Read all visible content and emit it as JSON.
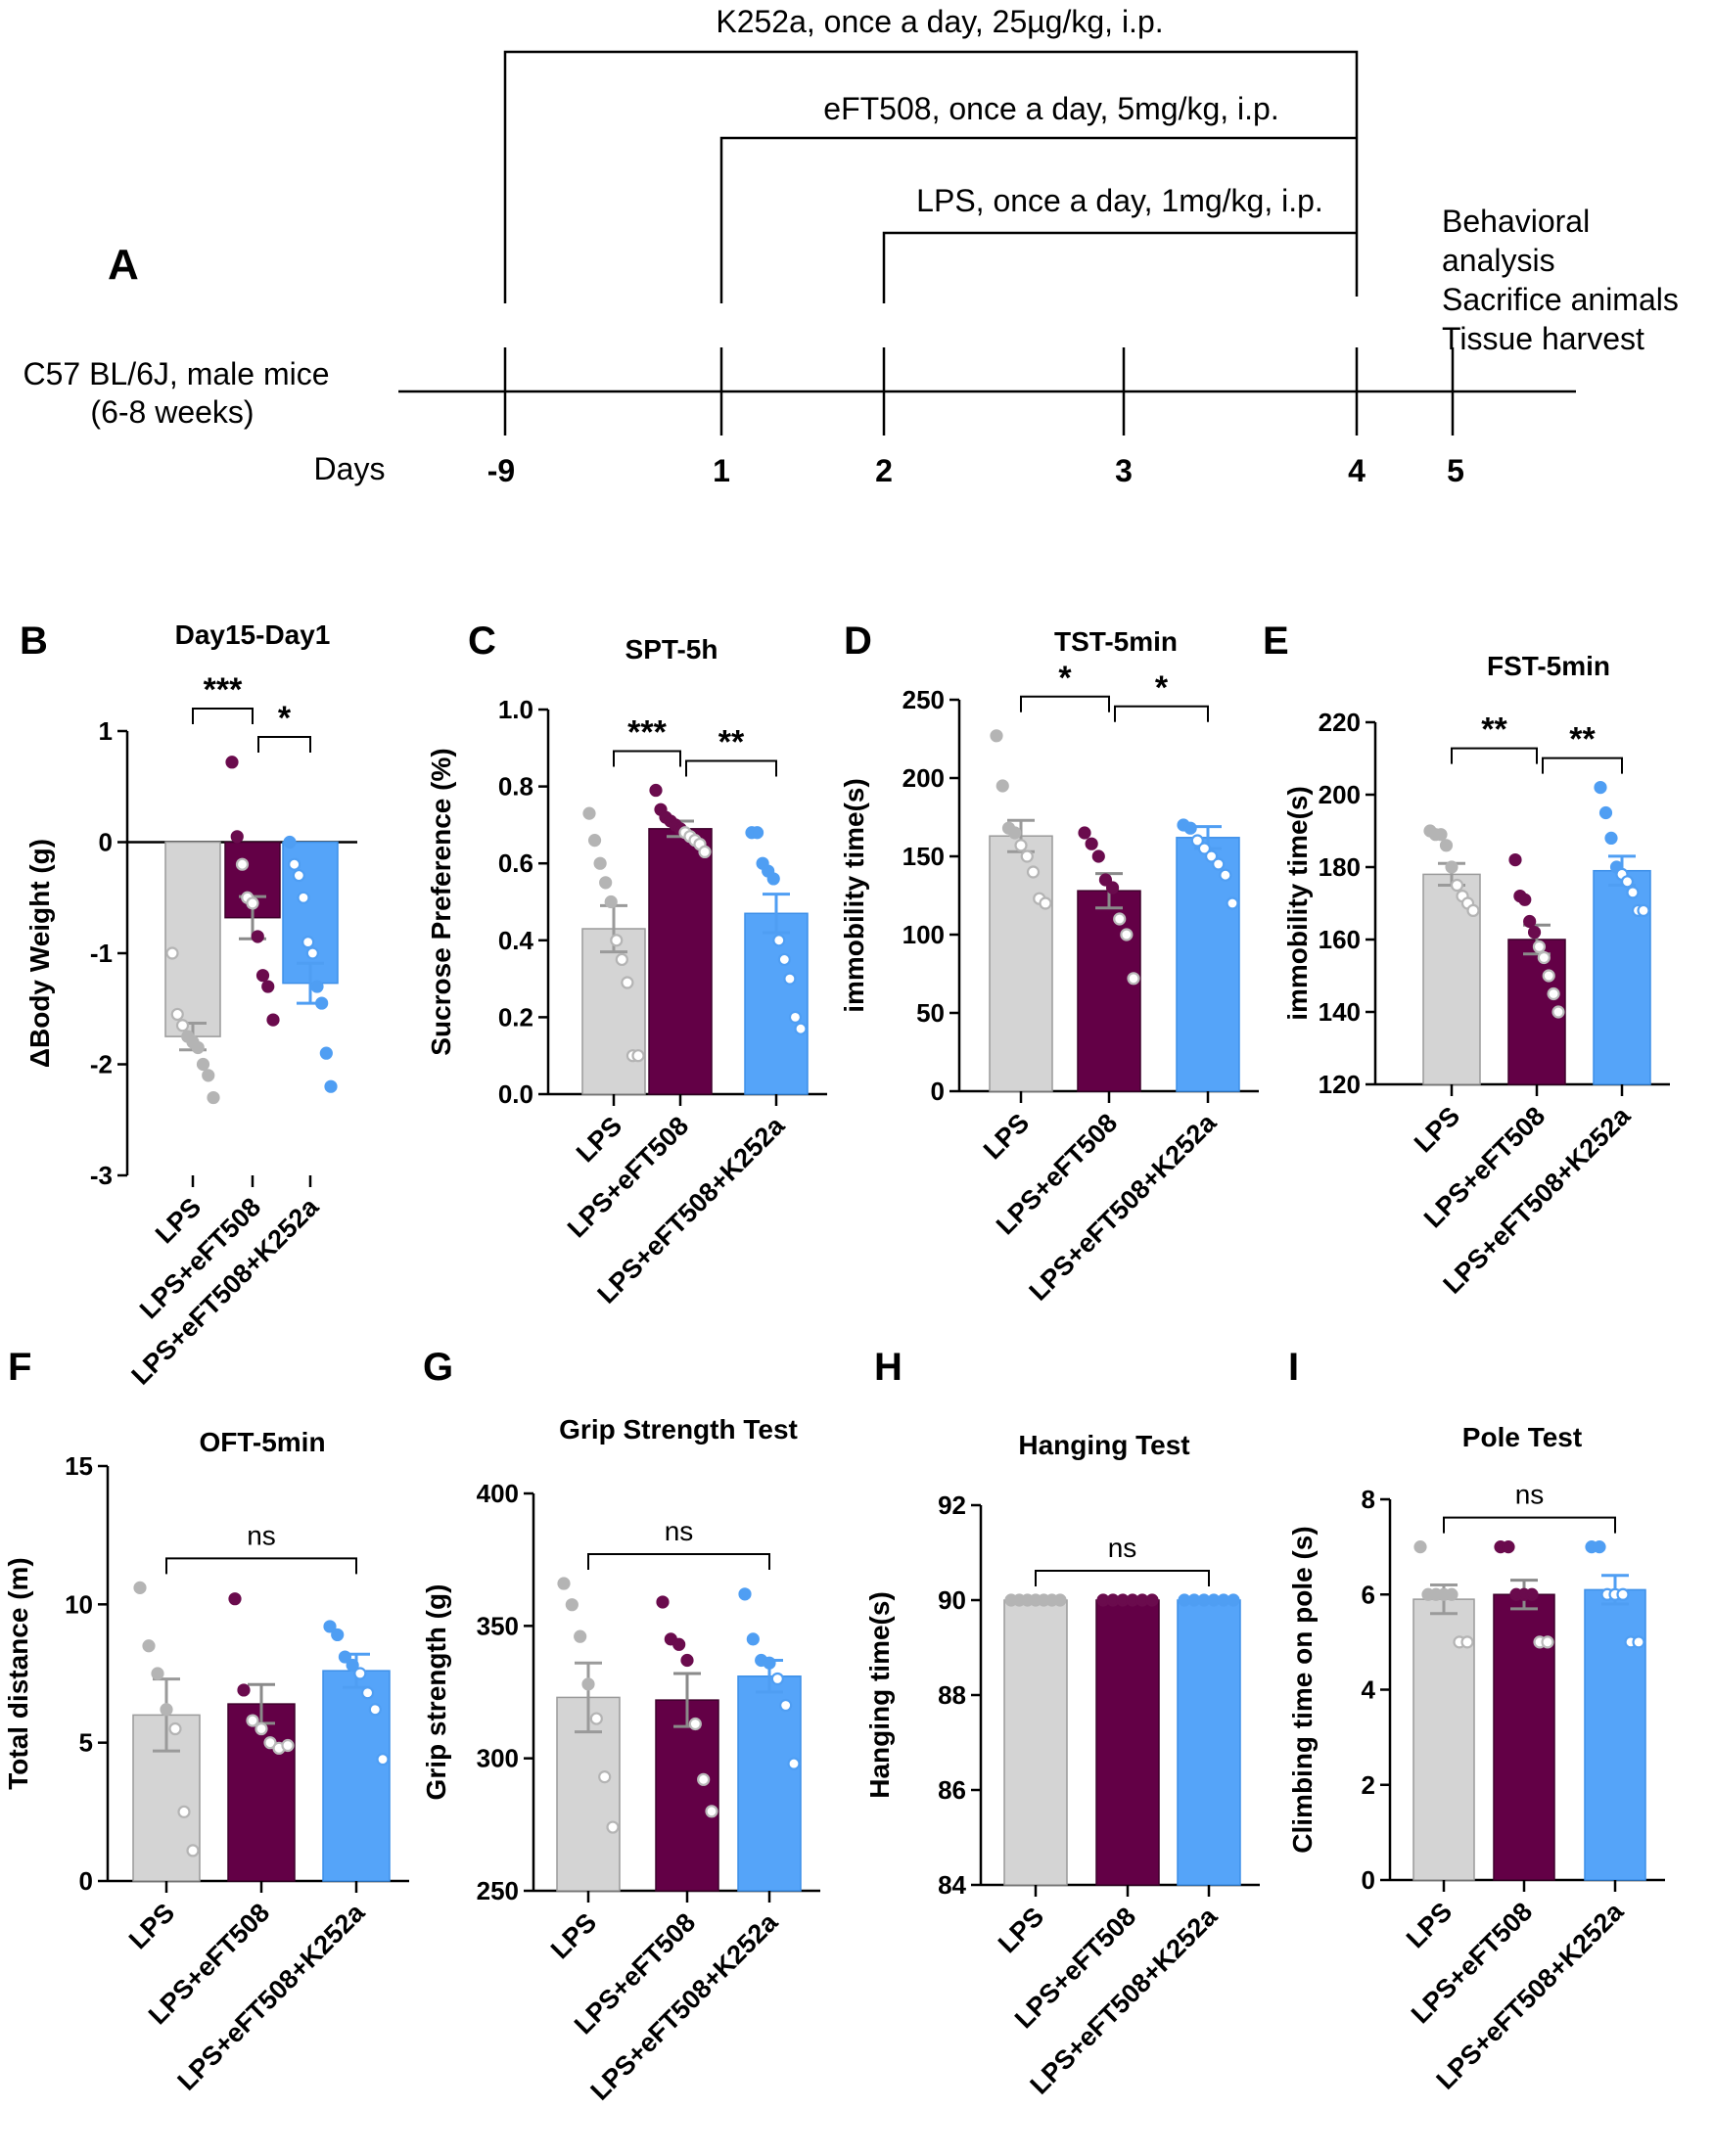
{
  "colors": {
    "LPS": "#d4d4d4",
    "LPS_stroke": "#9a9a9a",
    "LPS+eFT508": "#630046",
    "LPS+eFT508_stroke": "#3e002b",
    "LPS+eFT508+K252a": "#55a4f9",
    "LPS+eFT508+K252a_stroke": "#3d8fe8",
    "LPS_dot": "#b4b4b4",
    "LPS+eFT508_dot": "#6a0b4d",
    "LPS+eFT508+K252a_dot": "#4f9ef3"
  },
  "timeline": {
    "panel_label": "A",
    "subject_line1": "C57 BL/6J, male mice",
    "subject_line2": "(6-8 weeks)",
    "days_label": "Days",
    "days": [
      "-9",
      "1",
      "2",
      "3",
      "4",
      "5"
    ],
    "k252a": "K252a, once a day, 25µg/kg, i.p.",
    "eft508": "eFT508, once a day, 5mg/kg, i.p.",
    "lps": "LPS, once a day, 1mg/kg, i.p.",
    "end_line1": "Behavioral",
    "end_line2": "analysis",
    "end_line3": "Sacrifice animals",
    "end_line4": "Tissue harvest"
  },
  "chart_data": [
    {
      "panel": "B",
      "type": "bar",
      "title": "Day15-Day1",
      "ylabel": "ΔBody Weight (g)",
      "ylim": [
        -3,
        1
      ],
      "yticks": [
        -3,
        -2,
        -1,
        0,
        1
      ],
      "zero_line": true,
      "categories": [
        "LPS",
        "LPS+eFT508",
        "LPS+eFT508+K252a"
      ],
      "values": [
        -1.75,
        -0.68,
        -1.27
      ],
      "sem": [
        0.12,
        0.19,
        0.18
      ],
      "points": [
        [
          -1.0,
          -1.55,
          -1.65,
          -1.75,
          -1.8,
          -1.85,
          -2.0,
          -2.1,
          -2.3
        ],
        [
          0.72,
          0.05,
          -0.2,
          -0.5,
          -0.55,
          -0.85,
          -1.2,
          -1.3,
          -1.6
        ],
        [
          0.0,
          -0.2,
          -0.3,
          -0.5,
          -0.9,
          -1.0,
          -1.3,
          -1.45,
          -1.9,
          -2.2
        ]
      ],
      "sig": [
        {
          "from": 0,
          "to": 1,
          "label": "***"
        },
        {
          "from": 1,
          "to": 2,
          "label": "*"
        }
      ]
    },
    {
      "panel": "C",
      "type": "bar",
      "title": "SPT-5h",
      "ylabel": "Sucrose Preference (%)",
      "ylim": [
        0,
        1.0
      ],
      "yticks": [
        0.0,
        0.2,
        0.4,
        0.6,
        0.8,
        1.0
      ],
      "tick_decimals": 1,
      "categories": [
        "LPS",
        "LPS+eFT508",
        "LPS+eFT508+K252a"
      ],
      "values": [
        0.43,
        0.69,
        0.47
      ],
      "sem": [
        0.06,
        0.02,
        0.05
      ],
      "points": [
        [
          0.73,
          0.66,
          0.6,
          0.55,
          0.5,
          0.4,
          0.35,
          0.29,
          0.1,
          0.1
        ],
        [
          0.79,
          0.74,
          0.72,
          0.71,
          0.7,
          0.69,
          0.68,
          0.67,
          0.66,
          0.65,
          0.63
        ],
        [
          0.68,
          0.68,
          0.6,
          0.58,
          0.56,
          0.4,
          0.35,
          0.3,
          0.2,
          0.17
        ]
      ],
      "sig": [
        {
          "from": 0,
          "to": 1,
          "label": "***"
        },
        {
          "from": 1,
          "to": 2,
          "label": "**"
        }
      ]
    },
    {
      "panel": "D",
      "type": "bar",
      "title": "TST-5min",
      "ylabel": "immobility time(s)",
      "ylim": [
        0,
        250
      ],
      "yticks": [
        0,
        50,
        100,
        150,
        200,
        250
      ],
      "categories": [
        "LPS",
        "LPS+eFT508",
        "LPS+eFT508+K252a"
      ],
      "values": [
        163,
        128,
        162
      ],
      "sem": [
        10,
        11,
        7
      ],
      "points": [
        [
          227,
          195,
          168,
          165,
          157,
          150,
          140,
          123,
          120
        ],
        [
          165,
          158,
          150,
          135,
          130,
          110,
          100,
          72
        ],
        [
          170,
          168,
          160,
          155,
          150,
          145,
          138,
          120
        ]
      ],
      "sig": [
        {
          "from": 0,
          "to": 1,
          "label": "*"
        },
        {
          "from": 1,
          "to": 2,
          "label": "*"
        }
      ]
    },
    {
      "panel": "E",
      "type": "bar",
      "title": "FST-5min",
      "ylabel": "immobility time(s)",
      "ylim": [
        120,
        220
      ],
      "yticks": [
        120,
        140,
        160,
        180,
        200,
        220
      ],
      "categories": [
        "LPS",
        "LPS+eFT508",
        "LPS+eFT508+K252a"
      ],
      "values": [
        178,
        160,
        179
      ],
      "sem": [
        3,
        4,
        4
      ],
      "points": [
        [
          190,
          189,
          189,
          186,
          180,
          175,
          172,
          170,
          168
        ],
        [
          182,
          172,
          171,
          165,
          162,
          158,
          155,
          150,
          145,
          140
        ],
        [
          202,
          195,
          188,
          180,
          178,
          176,
          173,
          168,
          168
        ]
      ],
      "sig": [
        {
          "from": 0,
          "to": 1,
          "label": "**"
        },
        {
          "from": 1,
          "to": 2,
          "label": "**"
        }
      ]
    },
    {
      "panel": "F",
      "type": "bar",
      "title": "OFT-5min",
      "ylabel": "Total distance (m)",
      "ylim": [
        0,
        15
      ],
      "yticks": [
        0,
        5,
        10,
        15
      ],
      "categories": [
        "LPS",
        "LPS+eFT508",
        "LPS+eFT508+K252a"
      ],
      "values": [
        6.0,
        6.4,
        7.6
      ],
      "sem": [
        1.3,
        0.7,
        0.6
      ],
      "points": [
        [
          10.6,
          8.5,
          7.5,
          6.2,
          5.5,
          2.5,
          1.1
        ],
        [
          10.2,
          6.9,
          5.8,
          5.5,
          5.0,
          4.8,
          4.9
        ],
        [
          9.2,
          8.9,
          8.1,
          7.8,
          7.5,
          6.8,
          6.2,
          4.4
        ]
      ],
      "sig": [
        {
          "from": 0,
          "to": 2,
          "label": "ns"
        }
      ]
    },
    {
      "panel": "G",
      "type": "bar",
      "title": "Grip Strength Test",
      "ylabel": "Grip strength (g)",
      "ylim": [
        250,
        400
      ],
      "yticks": [
        250,
        300,
        350,
        400
      ],
      "categories": [
        "LPS",
        "LPS+eFT508",
        "LPS+eFT508+K252a"
      ],
      "values": [
        323,
        322,
        331
      ],
      "sem": [
        13,
        10,
        6
      ],
      "points": [
        [
          366,
          358,
          346,
          328,
          315,
          293,
          274
        ],
        [
          359,
          345,
          343,
          337,
          313,
          292,
          280
        ],
        [
          362,
          345,
          337,
          336,
          330,
          320,
          298
        ]
      ],
      "sig": [
        {
          "from": 0,
          "to": 2,
          "label": "ns"
        }
      ]
    },
    {
      "panel": "H",
      "type": "bar",
      "title": "Hanging Test",
      "ylabel": "Hanging time(s)",
      "ylim": [
        84,
        92
      ],
      "yticks": [
        84,
        86,
        88,
        90,
        92
      ],
      "categories": [
        "LPS",
        "LPS+eFT508",
        "LPS+eFT508+K252a"
      ],
      "values": [
        90,
        90,
        90
      ],
      "sem": [
        0,
        0,
        0
      ],
      "points": [
        [
          90,
          90,
          90,
          90,
          90,
          90,
          90
        ],
        [
          90,
          90,
          90,
          90,
          90,
          90
        ],
        [
          90,
          90,
          90,
          90,
          90,
          90
        ]
      ],
      "sig": [
        {
          "from": 0,
          "to": 2,
          "label": "ns"
        }
      ]
    },
    {
      "panel": "I",
      "type": "bar",
      "title": "Pole Test",
      "ylabel": "Climbing time on pole (s)",
      "ylim": [
        0,
        8
      ],
      "yticks": [
        0,
        2,
        4,
        6,
        8
      ],
      "categories": [
        "LPS",
        "LPS+eFT508",
        "LPS+eFT508+K252a"
      ],
      "values": [
        5.9,
        6.0,
        6.1
      ],
      "sem": [
        0.3,
        0.3,
        0.3
      ],
      "points": [
        [
          7.0,
          6.0,
          6.0,
          6.0,
          6.0,
          5.0,
          5.0
        ],
        [
          7.0,
          7.0,
          6.0,
          6.0,
          6.0,
          5.0,
          5.0
        ],
        [
          7.0,
          7.0,
          6.0,
          6.0,
          6.0,
          5.0,
          5.0
        ]
      ],
      "sig": [
        {
          "from": 0,
          "to": 2,
          "label": "ns"
        }
      ]
    }
  ]
}
